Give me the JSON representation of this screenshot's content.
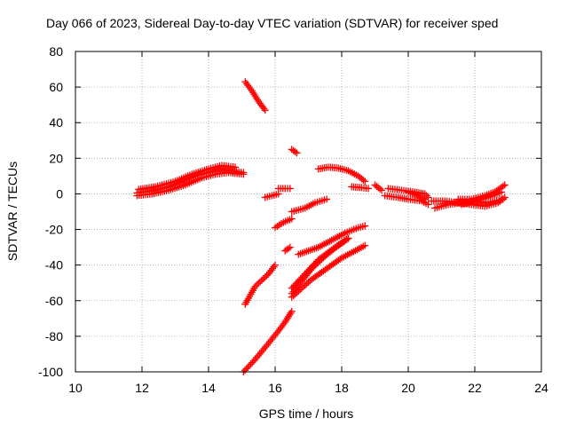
{
  "chart_data": {
    "type": "scatter",
    "title": "Day 066 of 2023, Sidereal Day-to-day VTEC variation (SDTVAR) for receiver sped",
    "xlabel": "GPS time / hours",
    "ylabel": "SDTVAR / TECUs",
    "xlim": [
      10,
      24
    ],
    "ylim": [
      -100,
      80
    ],
    "x_ticks": [
      "10",
      "12",
      "14",
      "16",
      "18",
      "20",
      "22",
      "24"
    ],
    "y_ticks": [
      "-100",
      "-80",
      "-60",
      "-40",
      "-20",
      "0",
      "20",
      "40",
      "60",
      "80"
    ],
    "x_tick_values": [
      10,
      12,
      14,
      16,
      18,
      20,
      22,
      24
    ],
    "y_tick_values": [
      -100,
      -80,
      -60,
      -40,
      -20,
      0,
      20,
      40,
      60,
      80
    ],
    "grid": true,
    "marker": "plus",
    "color": "#ff0000",
    "series": [
      {
        "x": [
          11.85,
          12.3,
          12.8,
          13.2,
          13.6,
          14.0,
          14.3,
          14.7,
          15.05
        ],
        "y": [
          0.5,
          1.5,
          4,
          7,
          10,
          12,
          14,
          13,
          12
        ]
      },
      {
        "x": [
          11.85,
          12.3,
          12.8,
          13.3,
          13.8,
          14.2,
          14.6,
          15.05
        ],
        "y": [
          -1,
          0,
          2,
          5,
          9,
          11,
          12,
          11
        ]
      },
      {
        "x": [
          11.9,
          12.4,
          13.0,
          13.5,
          14.0,
          14.4,
          14.8
        ],
        "y": [
          2.5,
          4,
          7,
          11,
          14,
          16,
          15
        ]
      },
      {
        "x": [
          15.1,
          15.3,
          15.5,
          15.7
        ],
        "y": [
          63,
          58,
          52,
          47
        ]
      },
      {
        "x": [
          15.7,
          15.9,
          16.1
        ],
        "y": [
          -2,
          -1,
          0
        ]
      },
      {
        "x": [
          16.1,
          16.3,
          16.45
        ],
        "y": [
          3,
          3,
          3
        ]
      },
      {
        "x": [
          16.0,
          16.25,
          16.5
        ],
        "y": [
          -19,
          -16,
          -14
        ]
      },
      {
        "x": [
          16.5,
          16.65
        ],
        "y": [
          25,
          23
        ]
      },
      {
        "x": [
          16.5,
          16.9,
          17.2,
          17.55
        ],
        "y": [
          -10,
          -8,
          -5,
          -3
        ]
      },
      {
        "x": [
          16.3,
          16.45
        ],
        "y": [
          -32,
          -30
        ]
      },
      {
        "x": [
          16.7,
          17.0,
          17.3,
          17.7,
          18.1,
          18.5,
          18.7
        ],
        "y": [
          -34,
          -32,
          -30,
          -26,
          -22,
          -19,
          -18
        ]
      },
      {
        "x": [
          15.1,
          15.4,
          15.8,
          16.0
        ],
        "y": [
          -62,
          -52,
          -45,
          -40
        ]
      },
      {
        "x": [
          15.05,
          15.4,
          15.8,
          16.1,
          16.3,
          16.5
        ],
        "y": [
          -100,
          -93,
          -84,
          -77,
          -72,
          -66
        ]
      },
      {
        "x": [
          16.5,
          16.8,
          17.1,
          17.4,
          17.7,
          18.0,
          18.3,
          18.7
        ],
        "y": [
          -58,
          -53,
          -48,
          -44,
          -40,
          -36,
          -33,
          -29
        ]
      },
      {
        "x": [
          16.5,
          16.8,
          17.1,
          17.5,
          17.9,
          18.2
        ],
        "y": [
          -56,
          -49,
          -42,
          -35,
          -29,
          -25
        ]
      },
      {
        "x": [
          16.5,
          16.9,
          17.3,
          17.8,
          18.2
        ],
        "y": [
          -53,
          -45,
          -37,
          -30,
          -25
        ]
      },
      {
        "x": [
          17.3,
          17.6,
          17.9,
          18.2,
          18.5,
          18.7
        ],
        "y": [
          14,
          15,
          14.5,
          13,
          10,
          7
        ]
      },
      {
        "x": [
          18.3,
          18.6,
          18.8
        ],
        "y": [
          4,
          3.5,
          3
        ]
      },
      {
        "x": [
          19.0,
          19.2
        ],
        "y": [
          5,
          2
        ]
      },
      {
        "x": [
          19.3,
          19.7,
          20.0,
          20.4,
          20.6
        ],
        "y": [
          -1,
          -2,
          -3,
          -4,
          -6
        ]
      },
      {
        "x": [
          19.4,
          19.8,
          20.2,
          20.5,
          20.6
        ],
        "y": [
          3,
          2,
          1,
          0,
          -2
        ]
      },
      {
        "x": [
          20.0,
          20.3,
          20.5
        ],
        "y": [
          1,
          -1,
          -3
        ]
      },
      {
        "x": [
          20.8,
          21.2,
          21.6,
          22.0,
          22.4,
          22.85
        ],
        "y": [
          -8,
          -6,
          -5,
          -4,
          -5,
          -3
        ]
      },
      {
        "x": [
          20.7,
          21.1,
          21.5,
          21.9,
          22.3,
          22.7,
          22.9
        ],
        "y": [
          -4,
          -4,
          -5,
          -6,
          -7,
          -5,
          -2
        ]
      },
      {
        "x": [
          21.5,
          21.9,
          22.3,
          22.6,
          22.9
        ],
        "y": [
          -3,
          -3,
          -1,
          1,
          5
        ]
      },
      {
        "x": [
          21.6,
          22.0,
          22.4,
          22.8
        ],
        "y": [
          -6,
          -4,
          -2,
          1
        ]
      }
    ]
  }
}
